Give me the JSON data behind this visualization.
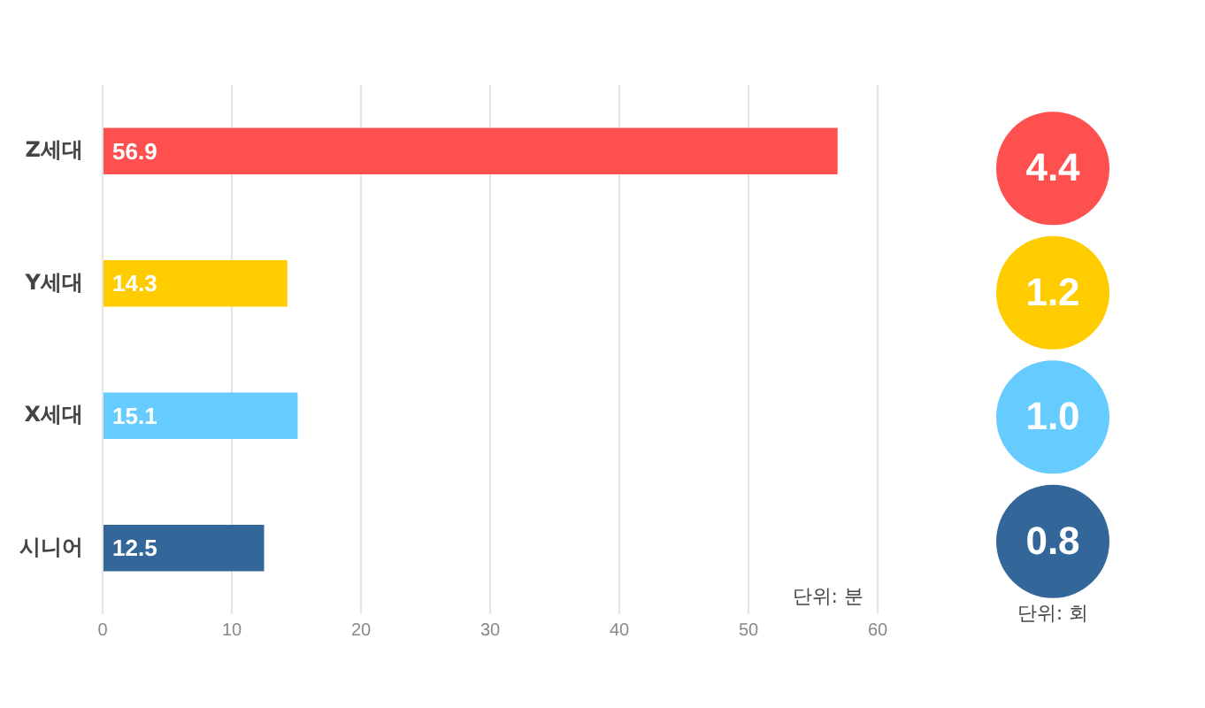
{
  "chart_data": [
    {
      "type": "bar",
      "orientation": "horizontal",
      "categories": [
        "Z세대",
        "Y세대",
        "X세대",
        "시니어"
      ],
      "values": [
        56.9,
        14.3,
        15.1,
        12.5
      ],
      "colors": [
        "#ff5050",
        "#ffcc00",
        "#66ccff",
        "#336699"
      ],
      "xlim": [
        0,
        60
      ],
      "xticks": [
        0,
        10,
        20,
        30,
        40,
        50,
        60
      ],
      "grid": "x",
      "data_labels": true,
      "legend": false,
      "annotations": [
        "단위: 분"
      ]
    },
    {
      "type": "other",
      "values": [
        4.4,
        1.2,
        1.0,
        0.8
      ],
      "value_labels": [
        "4.4",
        "1.2",
        "1.0",
        "0.8"
      ],
      "colors": [
        "#ff5050",
        "#ffcc00",
        "#66ccff",
        "#336699"
      ],
      "annotations": [
        "단위: 회"
      ]
    }
  ]
}
